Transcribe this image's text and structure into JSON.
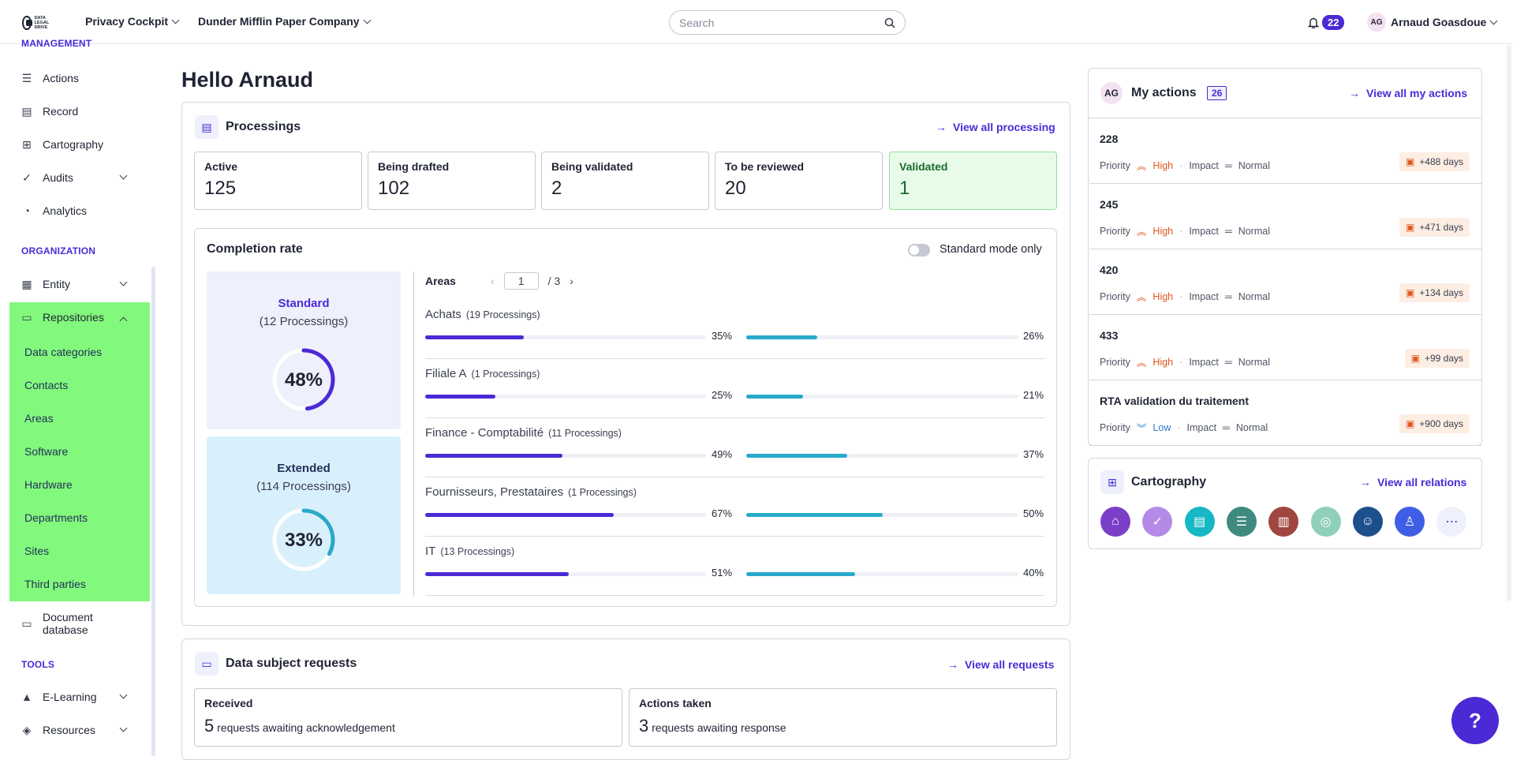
{
  "topbar": {
    "logo_text": "DATA LEGAL DRIVE",
    "product": "Privacy Cockpit",
    "company": "Dunder Mifflin Paper Company",
    "search_placeholder": "Search",
    "notif_count": "22",
    "user_initials": "AG",
    "user_name": "Arnaud Goasdoue"
  },
  "sidebar": {
    "section_management": "MANAGEMENT",
    "items_management": [
      {
        "label": "Actions",
        "icon": "list-icon"
      },
      {
        "label": "Record",
        "icon": "table-icon"
      },
      {
        "label": "Cartography",
        "icon": "map-icon"
      },
      {
        "label": "Audits",
        "icon": "check-circle-icon"
      },
      {
        "label": "Analytics",
        "icon": "pie-chart-icon"
      }
    ],
    "section_organization": "ORGANIZATION",
    "entity": "Entity",
    "repositories": "Repositories",
    "repo_subitems": [
      "Data categories",
      "Contacts",
      "Areas",
      "Software",
      "Hardware",
      "Departments",
      "Sites",
      "Third parties"
    ],
    "document_database": "Document database",
    "section_tools": "TOOLS",
    "elearning": "E-Learning",
    "resources": "Resources"
  },
  "greeting": "Hello Arnaud",
  "processings": {
    "title": "Processings",
    "view_all": "View all processing",
    "stats": [
      {
        "label": "Active",
        "value": "125"
      },
      {
        "label": "Being drafted",
        "value": "102"
      },
      {
        "label": "Being validated",
        "value": "2"
      },
      {
        "label": "To be reviewed",
        "value": "20"
      },
      {
        "label": "Validated",
        "value": "1"
      }
    ],
    "completion": {
      "title": "Completion rate",
      "toggle_label": "Standard mode only",
      "standard": {
        "title": "Standard",
        "subtitle": "(12 Processings)",
        "pct_label": "48%",
        "pct": 48
      },
      "extended": {
        "title": "Extended",
        "subtitle": "(114 Processings)",
        "pct_label": "33%",
        "pct": 33
      },
      "areas_label": "Areas",
      "page": "1",
      "page_total": "/ 3",
      "areas": [
        {
          "name": "Achats",
          "count": "(19 Processings)",
          "std": 35,
          "std_label": "35%",
          "ext": 26,
          "ext_label": "26%"
        },
        {
          "name": "Filiale A",
          "count": "(1 Processings)",
          "std": 25,
          "std_label": "25%",
          "ext": 21,
          "ext_label": "21%"
        },
        {
          "name": "Finance - Comptabilité",
          "count": "(11 Processings)",
          "std": 49,
          "std_label": "49%",
          "ext": 37,
          "ext_label": "37%"
        },
        {
          "name": "Fournisseurs, Prestataires",
          "count": "(1 Processings)",
          "std": 67,
          "std_label": "67%",
          "ext": 50,
          "ext_label": "50%"
        },
        {
          "name": "IT",
          "count": "(13 Processings)",
          "std": 51,
          "std_label": "51%",
          "ext": 40,
          "ext_label": "40%"
        }
      ]
    }
  },
  "dsr": {
    "title": "Data subject requests",
    "view_all": "View all requests",
    "received": {
      "label": "Received",
      "value": "5",
      "text": "requests awaiting acknowledgement"
    },
    "actions_taken": {
      "label": "Actions taken",
      "value": "3",
      "text": "requests awaiting response"
    }
  },
  "my_actions": {
    "initials": "AG",
    "title": "My actions",
    "count": "26",
    "view_all": "View all my actions",
    "priority_label": "Priority",
    "impact_label": "Impact",
    "items": [
      {
        "id": "228",
        "priority": "High",
        "impact": "Normal",
        "days": "+488 days"
      },
      {
        "id": "245",
        "priority": "High",
        "impact": "Normal",
        "days": "+471 days"
      },
      {
        "id": "420",
        "priority": "High",
        "impact": "Normal",
        "days": "+134 days"
      },
      {
        "id": "433",
        "priority": "High",
        "impact": "Normal",
        "days": "+99 days"
      },
      {
        "id": "RTA validation du traitement",
        "priority": "Low",
        "impact": "Normal",
        "days": "+900 days"
      }
    ]
  },
  "cartography": {
    "title": "Cartography",
    "view_all": "View all relations",
    "icons": [
      {
        "name": "bank-icon",
        "color": "#7b3fc7"
      },
      {
        "name": "shield-check-icon",
        "color": "#b58ae6"
      },
      {
        "name": "document-icon",
        "color": "#17b7c6"
      },
      {
        "name": "list-icon",
        "color": "#3f8a80"
      },
      {
        "name": "report-icon",
        "color": "#a0453f"
      },
      {
        "name": "database-icon",
        "color": "#8fd0b9"
      },
      {
        "name": "group-icon",
        "color": "#1d4f8c"
      },
      {
        "name": "person-icon",
        "color": "#3f5ee6"
      },
      {
        "name": "more-icon",
        "color": "#eef0fb"
      }
    ]
  },
  "colors": {
    "accent": "#4b2ad6",
    "teal": "#29a9c9",
    "green_highlight": "#82f97c"
  }
}
